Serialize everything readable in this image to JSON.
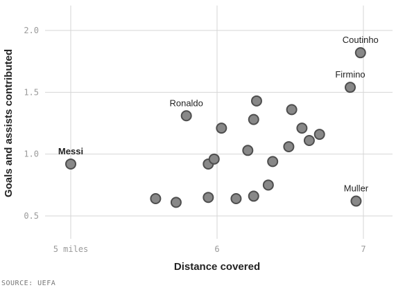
{
  "chart_data": {
    "type": "scatter",
    "xlabel": "Distance covered",
    "ylabel": "Goals and assists contributed",
    "xlim": [
      5,
      7
    ],
    "ylim": [
      0.35,
      2.2
    ],
    "x_ticks": [
      {
        "value": 5,
        "label": "5 miles"
      },
      {
        "value": 6,
        "label": "6"
      },
      {
        "value": 7,
        "label": "7"
      }
    ],
    "y_ticks": [
      {
        "value": 0.5,
        "label": "0.5"
      },
      {
        "value": 1.0,
        "label": "1.0"
      },
      {
        "value": 1.5,
        "label": "1.5"
      },
      {
        "value": 2.0,
        "label": "2.0"
      }
    ],
    "grid": true,
    "marker_color": "#888888",
    "marker_edge_color": "#4e4e4e",
    "points": [
      {
        "x": 5.0,
        "y": 0.92,
        "label": "Messi"
      },
      {
        "x": 5.79,
        "y": 1.31,
        "label": "Ronaldo"
      },
      {
        "x": 6.98,
        "y": 1.82,
        "label": "Coutinho"
      },
      {
        "x": 6.91,
        "y": 1.54,
        "label": "Firmino"
      },
      {
        "x": 6.95,
        "y": 0.62,
        "label": "Muller"
      },
      {
        "x": 5.58,
        "y": 0.64
      },
      {
        "x": 5.72,
        "y": 0.61
      },
      {
        "x": 5.94,
        "y": 0.65
      },
      {
        "x": 5.94,
        "y": 0.92
      },
      {
        "x": 5.98,
        "y": 0.96
      },
      {
        "x": 6.03,
        "y": 1.21
      },
      {
        "x": 6.13,
        "y": 0.64
      },
      {
        "x": 6.21,
        "y": 1.03
      },
      {
        "x": 6.25,
        "y": 0.66
      },
      {
        "x": 6.25,
        "y": 1.28
      },
      {
        "x": 6.27,
        "y": 1.43
      },
      {
        "x": 6.35,
        "y": 0.75
      },
      {
        "x": 6.38,
        "y": 0.94
      },
      {
        "x": 6.49,
        "y": 1.06
      },
      {
        "x": 6.51,
        "y": 1.36
      },
      {
        "x": 6.58,
        "y": 1.21
      },
      {
        "x": 6.63,
        "y": 1.11
      },
      {
        "x": 6.7,
        "y": 1.16
      }
    ],
    "source": "SOURCE: UEFA"
  }
}
